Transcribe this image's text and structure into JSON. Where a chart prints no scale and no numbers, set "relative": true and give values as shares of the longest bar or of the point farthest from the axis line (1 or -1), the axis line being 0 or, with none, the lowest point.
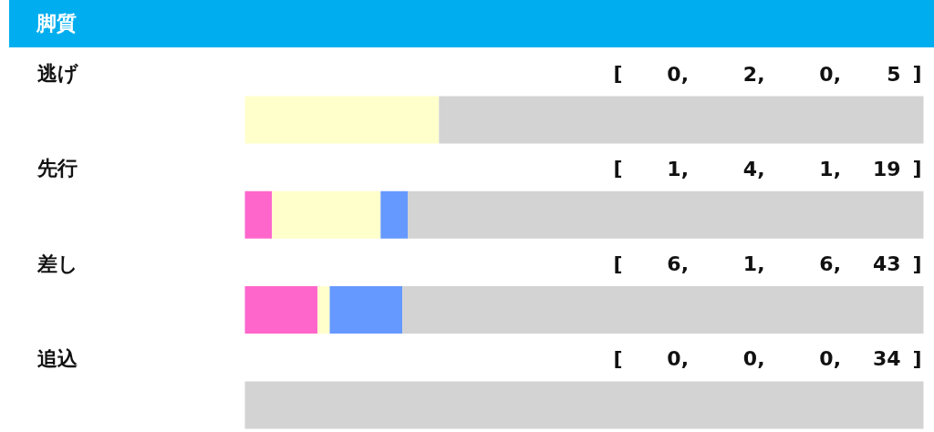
{
  "chart_data": {
    "type": "bar",
    "title": "脚質",
    "orientation": "horizontal",
    "stacked": true,
    "relative": true,
    "categories": [
      "逃げ",
      "先行",
      "差し",
      "追込"
    ],
    "series": [
      {
        "color": "#ff66cc",
        "values": [
          0,
          0.04,
          0.107,
          0
        ]
      },
      {
        "color": "#ffffcc",
        "values": [
          0.286,
          0.16,
          0.018,
          0
        ]
      },
      {
        "color": "#6699ff",
        "values": [
          0,
          0.04,
          0.107,
          0
        ]
      },
      {
        "color": "#d3d3d3",
        "values": [
          0.714,
          0.76,
          0.768,
          1
        ]
      }
    ],
    "annotations": [
      "[ 0, 2, 0, 5 ]",
      "[ 1, 4, 1, 19 ]",
      "[ 6, 1, 6, 43 ]",
      "[ 0, 0, 0, 34 ]"
    ]
  }
}
